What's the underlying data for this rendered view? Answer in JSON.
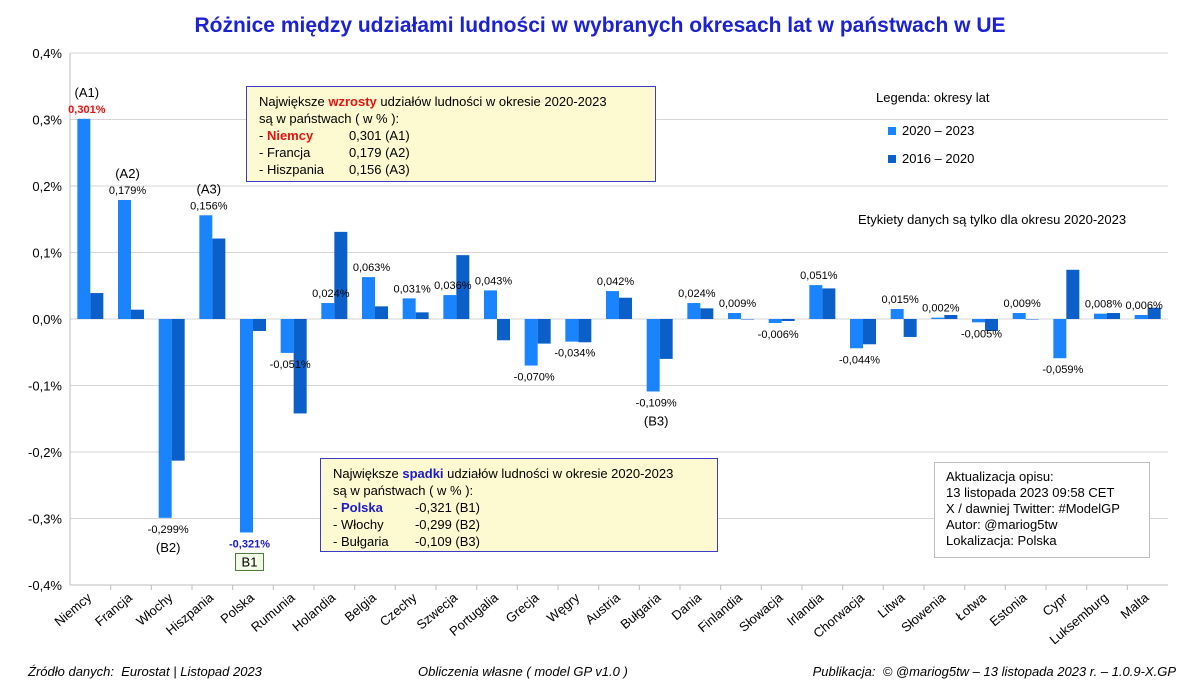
{
  "title": "Różnice między udziałami ludności w wybranych okresach lat w państwach w UE",
  "chart_data": {
    "type": "bar",
    "title": "Różnice między udziałami ludności w wybranych okresach lat w państwach w UE",
    "xlabel": "",
    "ylabel": "",
    "ylim": [
      -0.4,
      0.4
    ],
    "yticks": [
      "-0,4%",
      "-0,3%",
      "-0,2%",
      "-0,1%",
      "0,0%",
      "0,1%",
      "0,2%",
      "0,3%",
      "0,4%"
    ],
    "grid": true,
    "categories": [
      "Niemcy",
      "Francja",
      "Włochy",
      "Hiszpania",
      "Polska",
      "Rumunia",
      "Holandia",
      "Belgia",
      "Czechy",
      "Szwecja",
      "Portugalia",
      "Grecja",
      "Węgry",
      "Austria",
      "Bułgaria",
      "Dania",
      "Finlandia",
      "Słowacja",
      "Irlandia",
      "Chorwacja",
      "Litwa",
      "Słowenia",
      "Łotwa",
      "Estonia",
      "Cypr",
      "Luksemburg",
      "Malta"
    ],
    "series": [
      {
        "name": "2020 – 2023",
        "color": "#1a84ff",
        "values": [
          0.301,
          0.179,
          -0.299,
          0.156,
          -0.321,
          -0.051,
          0.024,
          0.063,
          0.031,
          0.036,
          0.043,
          -0.07,
          -0.034,
          0.042,
          -0.109,
          0.024,
          0.009,
          -0.006,
          0.051,
          -0.044,
          0.015,
          0.002,
          -0.005,
          0.009,
          -0.059,
          0.008,
          0.006
        ],
        "labels": [
          "0,301%",
          "0,179%",
          "-0,299%",
          "0,156%",
          "-0,321%",
          "-0,051%",
          "0,024%",
          "0,063%",
          "0,031%",
          "0,036%",
          "0,043%",
          "-0,070%",
          "-0,034%",
          "0,042%",
          "-0,109%",
          "0,024%",
          "0,009%",
          "-0,006%",
          "0,051%",
          "-0,044%",
          "0,015%",
          "0,002%",
          "-0,005%",
          "0,009%",
          "-0,059%",
          "0,008%",
          "0,006%"
        ]
      },
      {
        "name": "2016 – 2020",
        "color": "#0a5fc8",
        "values": [
          0.039,
          0.014,
          -0.213,
          0.121,
          -0.018,
          -0.142,
          0.131,
          0.019,
          0.01,
          0.096,
          -0.032,
          -0.037,
          -0.035,
          0.032,
          -0.06,
          0.016,
          0.0,
          -0.003,
          0.046,
          -0.038,
          -0.027,
          0.006,
          -0.018,
          0.0,
          0.074,
          0.009,
          0.017
        ]
      }
    ],
    "annotations": [
      {
        "text": "(A1)",
        "category": "Niemcy"
      },
      {
        "text": "(A2)",
        "category": "Francja"
      },
      {
        "text": "(A3)",
        "category": "Hiszpania"
      },
      {
        "text": "(B2)",
        "category": "Włochy"
      },
      {
        "text": "B1",
        "category": "Polska"
      },
      {
        "text": "(B3)",
        "category": "Bułgaria"
      }
    ],
    "legend": {
      "title": "Legenda: okresy lat",
      "position": "top-right"
    }
  },
  "increase_box": {
    "line1_pre": "Największe ",
    "line1_hl": "wzrosty",
    "line1_post": " udziałów ludności w okresie 2020-2023",
    "line2": "są w państwach ( w % ):",
    "rows": [
      {
        "dash": "- ",
        "name": "Niemcy",
        "value": "0,301 (A1)"
      },
      {
        "dash": "- ",
        "name": "Francja",
        "value": "0,179 (A2)"
      },
      {
        "dash": "- ",
        "name": "Hiszpania",
        "value": "0,156 (A3)"
      }
    ]
  },
  "decrease_box": {
    "line1_pre": "Największe ",
    "line1_hl": "spadki",
    "line1_post": " udziałów ludności w okresie 2020-2023",
    "line2": "są w państwach ( w % ):",
    "rows": [
      {
        "dash": "- ",
        "name": "Polska",
        "value": "-0,321 (B1)"
      },
      {
        "dash": "- ",
        "name": "Włochy",
        "value": "-0,299 (B2)"
      },
      {
        "dash": "- ",
        "name": "Bułgaria",
        "value": "-0,109 (B3)"
      }
    ]
  },
  "legend": {
    "title": "Legenda: okresy lat",
    "item1": "2020 – 2023",
    "item2": "2016 – 2020"
  },
  "note": "Etykiety danych są tylko dla okresu 2020-2023",
  "update_box": {
    "l1": "Aktualizacja opisu:",
    "l2": "13 listopada 2023 09:58 CET",
    "l3": "X / dawniej Twitter: #ModelGP",
    "l4": "Autor: @mariog5tw",
    "l5": "Lokalizacja: Polska"
  },
  "footer": {
    "source": "Źródło danych:  Eurostat | Listopad 2023",
    "calc": "Obliczenia własne ( model GP v1.0 )",
    "pub": "Publikacja:  © @mariog5tw – 13 listopada 2023 r. – 1.0.9-X.GP"
  }
}
